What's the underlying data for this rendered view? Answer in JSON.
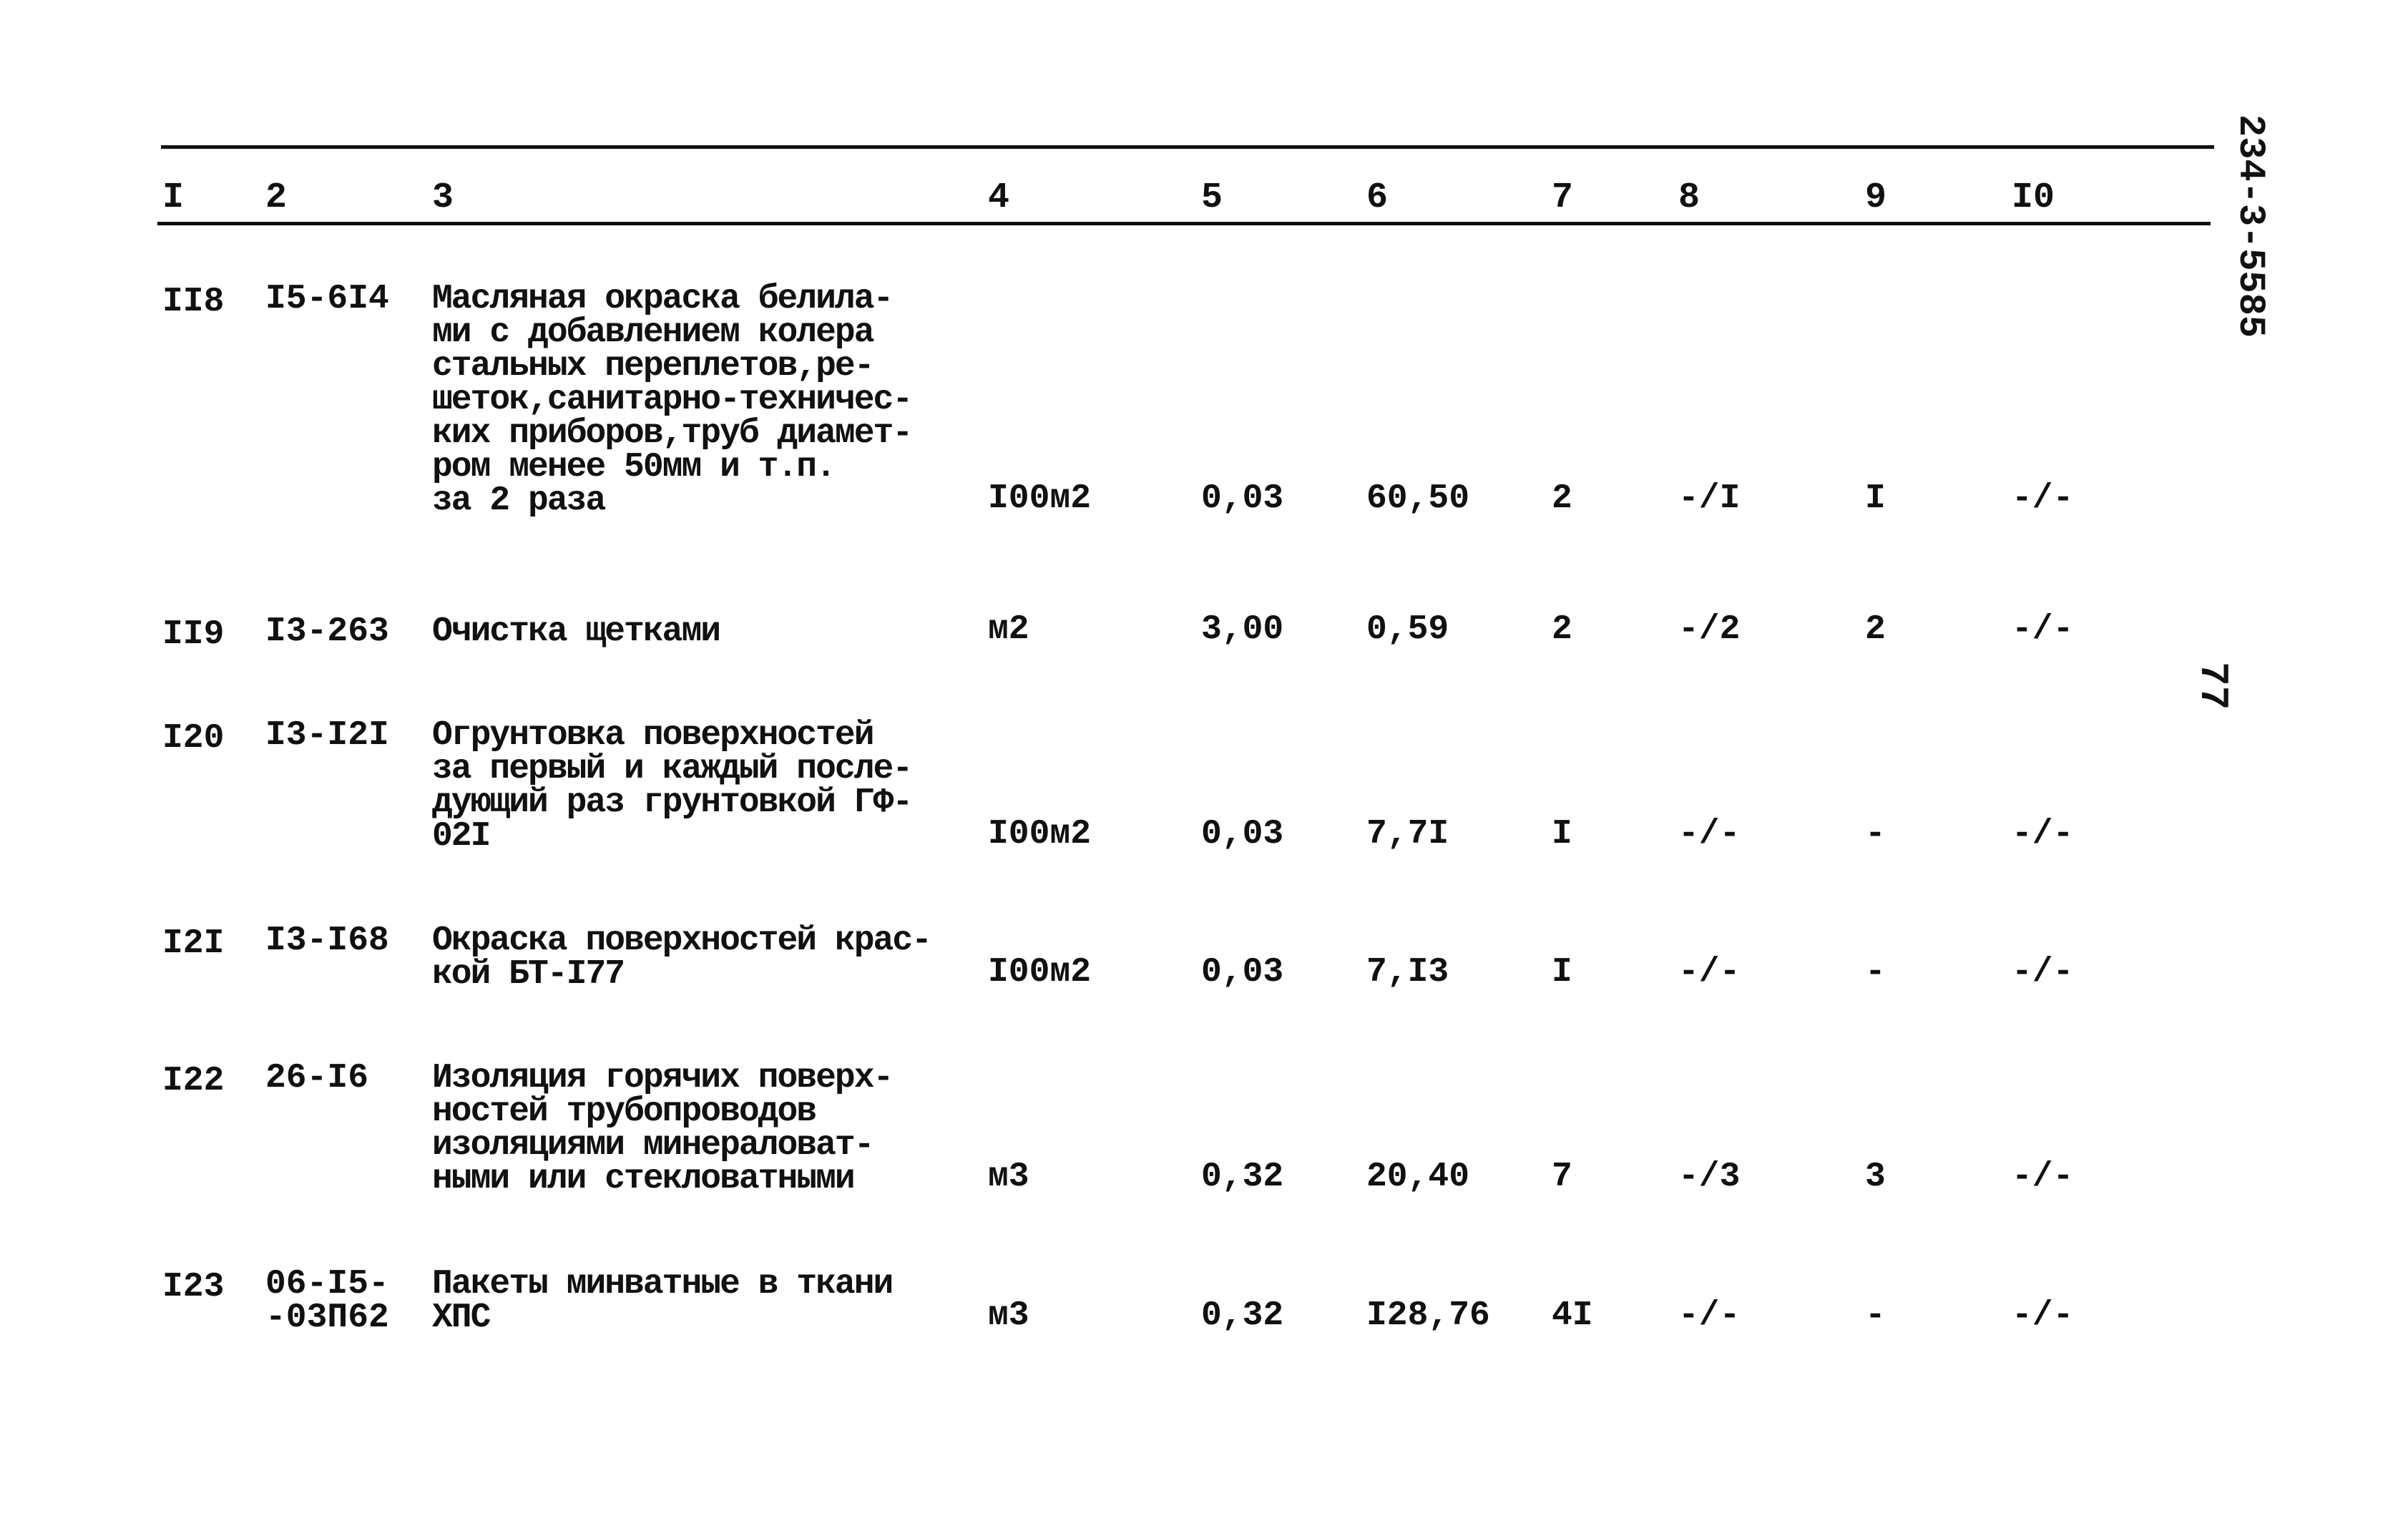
{
  "document": {
    "side_code": "234-3-5585",
    "page_number": "77",
    "columns": [
      "I",
      "2",
      "3",
      "4",
      "5",
      "6",
      "7",
      "8",
      "9",
      "I0"
    ],
    "rows": [
      {
        "no": "II8",
        "code": "I5-6I4",
        "desc": "Масляная окраска белила-\nми с добавлением колера\nстальных переплетов,ре-\nшеток,санитарно-техничес-\nких приборов,труб диамет-\nром менее 50мм и т.п.\nза 2 раза",
        "unit": "I00м2",
        "qty": "0,03",
        "norm": "60,50",
        "c7": "2",
        "c8": "-/I",
        "c9": "I",
        "c10": "-/-"
      },
      {
        "no": "II9",
        "code": "I3-263",
        "desc": "Очистка щетками",
        "unit": "м2",
        "qty": "3,00",
        "norm": "0,59",
        "c7": "2",
        "c8": "-/2",
        "c9": "2",
        "c10": "-/-"
      },
      {
        "no": "I20",
        "code": "I3-I2I",
        "desc": "Огрунтовка поверхностей\nза первый и каждый после-\nдующий раз грунтовкой ГФ-\n02I",
        "unit": "I00м2",
        "qty": "0,03",
        "norm": "7,7I",
        "c7": "I",
        "c8": "-/-",
        "c9": "-",
        "c10": "-/-"
      },
      {
        "no": "I2I",
        "code": "I3-I68",
        "desc": "Окраска поверхностей крас-\nкой БТ-I77",
        "unit": "I00м2",
        "qty": "0,03",
        "norm": "7,I3",
        "c7": "I",
        "c8": "-/-",
        "c9": "-",
        "c10": "-/-"
      },
      {
        "no": "I22",
        "code": "26-I6",
        "desc": "Изоляция горячих поверх-\nностей трубопроводов\nизоляциями минераловат-\nными или стекловатными",
        "unit": "м3",
        "qty": "0,32",
        "norm": "20,40",
        "c7": "7",
        "c8": "-/3",
        "c9": "3",
        "c10": "-/-"
      },
      {
        "no": "I23",
        "code": "06-I5-\n-03П62",
        "desc": "Пакеты минватные в ткани\nХПС",
        "unit": "м3",
        "qty": "0,32",
        "norm": "I28,76",
        "c7": "4I",
        "c8": "-/-",
        "c9": "-",
        "c10": "-/-"
      }
    ]
  }
}
